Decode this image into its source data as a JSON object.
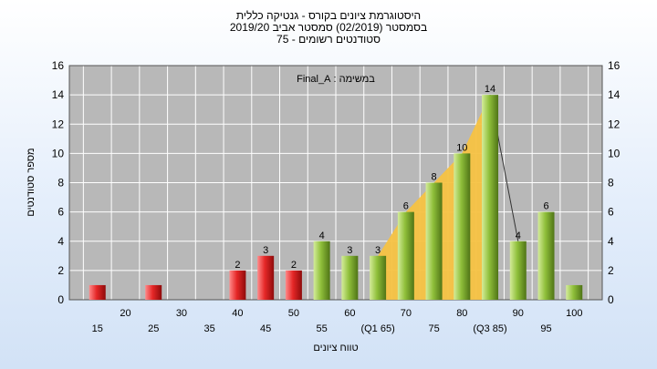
{
  "chart_data": {
    "type": "bar",
    "title_lines": [
      "היסטוגרמת ציונים בקורס - גנטיקה כללית",
      "בסמסטר  (02/2019)  סמסטר אביב 2019/20",
      "סטודנטים רשומים - 75"
    ],
    "annotation": "במשימה : Final_A",
    "xlabel": "טווח ציונים",
    "ylabel": "מספר סטודנטים",
    "ylim": [
      0,
      16
    ],
    "yticks": [
      0,
      2,
      4,
      6,
      8,
      10,
      12,
      14,
      16
    ],
    "grid": true,
    "x_labels_lower": [
      "15",
      "25",
      "35",
      "45",
      "55",
      "(Q1 65)",
      "75",
      "(Q3 85)",
      "95"
    ],
    "x_labels_upper": [
      "20",
      "30",
      "40",
      "50",
      "60",
      "70",
      "80",
      "90",
      "100"
    ],
    "bars": [
      {
        "x": 15,
        "value": 1,
        "color": "#dd2222",
        "label": ""
      },
      {
        "x": 25,
        "value": 1,
        "color": "#dd2222",
        "label": ""
      },
      {
        "x": 40,
        "value": 2,
        "color": "#dd2222",
        "label": "2"
      },
      {
        "x": 45,
        "value": 3,
        "color": "#dd2222",
        "label": "3"
      },
      {
        "x": 50,
        "value": 2,
        "color": "#dd2222",
        "label": "2"
      },
      {
        "x": 55,
        "value": 4,
        "color": "#8fbf3a",
        "label": "4"
      },
      {
        "x": 60,
        "value": 3,
        "color": "#8fbf3a",
        "label": "3"
      },
      {
        "x": 65,
        "value": 3,
        "color": "#8fbf3a",
        "label": "3"
      },
      {
        "x": 70,
        "value": 6,
        "color": "#8fbf3a",
        "label": "6"
      },
      {
        "x": 75,
        "value": 8,
        "color": "#8fbf3a",
        "label": "8"
      },
      {
        "x": 80,
        "value": 10,
        "color": "#8fbf3a",
        "label": "10"
      },
      {
        "x": 85,
        "value": 14,
        "color": "#8fbf3a",
        "label": "14"
      },
      {
        "x": 90,
        "value": 4,
        "color": "#8fbf3a",
        "label": "4"
      },
      {
        "x": 95,
        "value": 6,
        "color": "#8fbf3a",
        "label": "6"
      },
      {
        "x": 100,
        "value": 1,
        "color": "#8fbf3a",
        "label": ""
      }
    ],
    "quartile_area": {
      "x": [
        65,
        70,
        75,
        80,
        85
      ],
      "y": [
        3,
        6,
        8,
        10,
        14
      ],
      "color": "#f5c242"
    },
    "quartile_line_to": {
      "x": 90,
      "y": 4
    },
    "colors": {
      "plot_bg": "#b8b8b8",
      "grid": "#ffffff",
      "low_bar": "#dd2222",
      "high_bar": "#8fbf3a"
    }
  }
}
